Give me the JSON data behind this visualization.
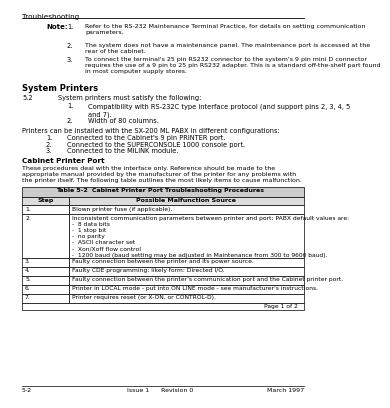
{
  "bg_color": "#ffffff",
  "header_text": "Troubleshooting",
  "notes": [
    {
      "num": "1.",
      "text": "Refer to the RS-232 Maintenance Terminal Practice, for details on setting communication\nparameters."
    },
    {
      "num": "2.",
      "text": "The system does not have a maintenance panel. The maintenance port is accessed at the\nrear of the cabinet."
    },
    {
      "num": "3.",
      "text": "To connect the terminal's 25 pin RS232 connector to the system's 9 pin mini D connector\nrequires the use of a 9 pin to 25 pin RS232 adapter. This is a standard off-the-shelf part found\nin most computer supply stores."
    }
  ],
  "section_title": "System Printers",
  "section_num": "5.2",
  "section_intro": "System printers must satisfy the following:",
  "requirements": [
    "Compatibility with RS-232C type interface protocol (and support pins 2, 3, 4, 5\nand 7).",
    "Width of 80 columns."
  ],
  "printers_intro": "Printers can be installed with the SX-200 ML PABX in different configurations:",
  "configurations": [
    "Connected to the Cabinet's 9 pin PRINTER port.",
    "Connected to the SUPERCONSOLE 1000 console port.",
    "Connected to the MILINK module."
  ],
  "cabinet_title": "Cabinet Printer Port",
  "cabinet_intro": "These procedures deal with the interface only. Reference should be made to the\nappropriate manual provided by the manufacturer of the printer for any problems with\nthe printer itself. The following table outlines the most likely items to cause malfunction.",
  "table_title": "Table 5-2  Cabinet Printer Port Troubleshooting Procedures",
  "table_col1": "Step",
  "table_col2": "Possible Malfunction Source",
  "table_rows": [
    {
      "step": "1.",
      "text": "Blown printer fuse (if applicable)."
    },
    {
      "step": "2.",
      "text": "Inconsistent communication parameters between printer and port; PABX default values are:\n-  8 data bits\n-  1 stop bit\n-  no parity\n-  ASCII character set\n-  Xon/Xoff flow control\n-  1200 baud (baud setting may be adjusted in Maintenance from 300 to 9600 baud)."
    },
    {
      "step": "3.",
      "text": "Faulty connection between the printer and its power source."
    },
    {
      "step": "4.",
      "text": "Faulty CDE programming; likely form: Directed I/O."
    },
    {
      "step": "5.",
      "text": "Faulty connection between the printer's communication port and the Cabinet printer port."
    },
    {
      "step": "6.",
      "text": "Printer in LOCAL mode - put into ON LINE mode - see manufacturer's instructions."
    },
    {
      "step": "7.",
      "text": "Printer requires reset (or X-ON, or CONTROL-D)."
    }
  ],
  "page_note": "Page 1 of 2",
  "footer_left": "5-2",
  "footer_center": "Issue 1      Revision 0",
  "footer_right": "March 1997",
  "lm": 0.04,
  "rm": 0.98
}
